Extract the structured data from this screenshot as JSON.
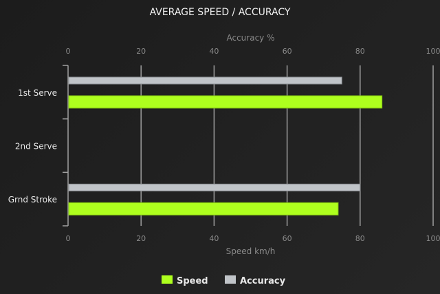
{
  "chart_data": {
    "type": "bar",
    "orientation": "horizontal",
    "title": "AVERAGE SPEED / ACCURACY",
    "categories": [
      "1st Serve",
      "2nd Serve",
      "Grnd Stroke"
    ],
    "series": [
      {
        "name": "Accuracy",
        "axis": "top",
        "color": "#c0c4c8",
        "values": [
          75,
          null,
          80
        ]
      },
      {
        "name": "Speed",
        "axis": "bottom",
        "color": "#aeff1e",
        "values": [
          86,
          null,
          74
        ]
      }
    ],
    "top_axis": {
      "label": "Accuracy %",
      "range": [
        0,
        100
      ],
      "ticks": [
        0,
        20,
        40,
        60,
        80,
        100
      ]
    },
    "bottom_axis": {
      "label": "Speed km/h",
      "range": [
        0,
        100
      ],
      "ticks": [
        0,
        20,
        40,
        60,
        80,
        100
      ]
    },
    "grid": true,
    "legend": {
      "position": "bottom",
      "items": [
        "Speed",
        "Accuracy"
      ]
    }
  }
}
